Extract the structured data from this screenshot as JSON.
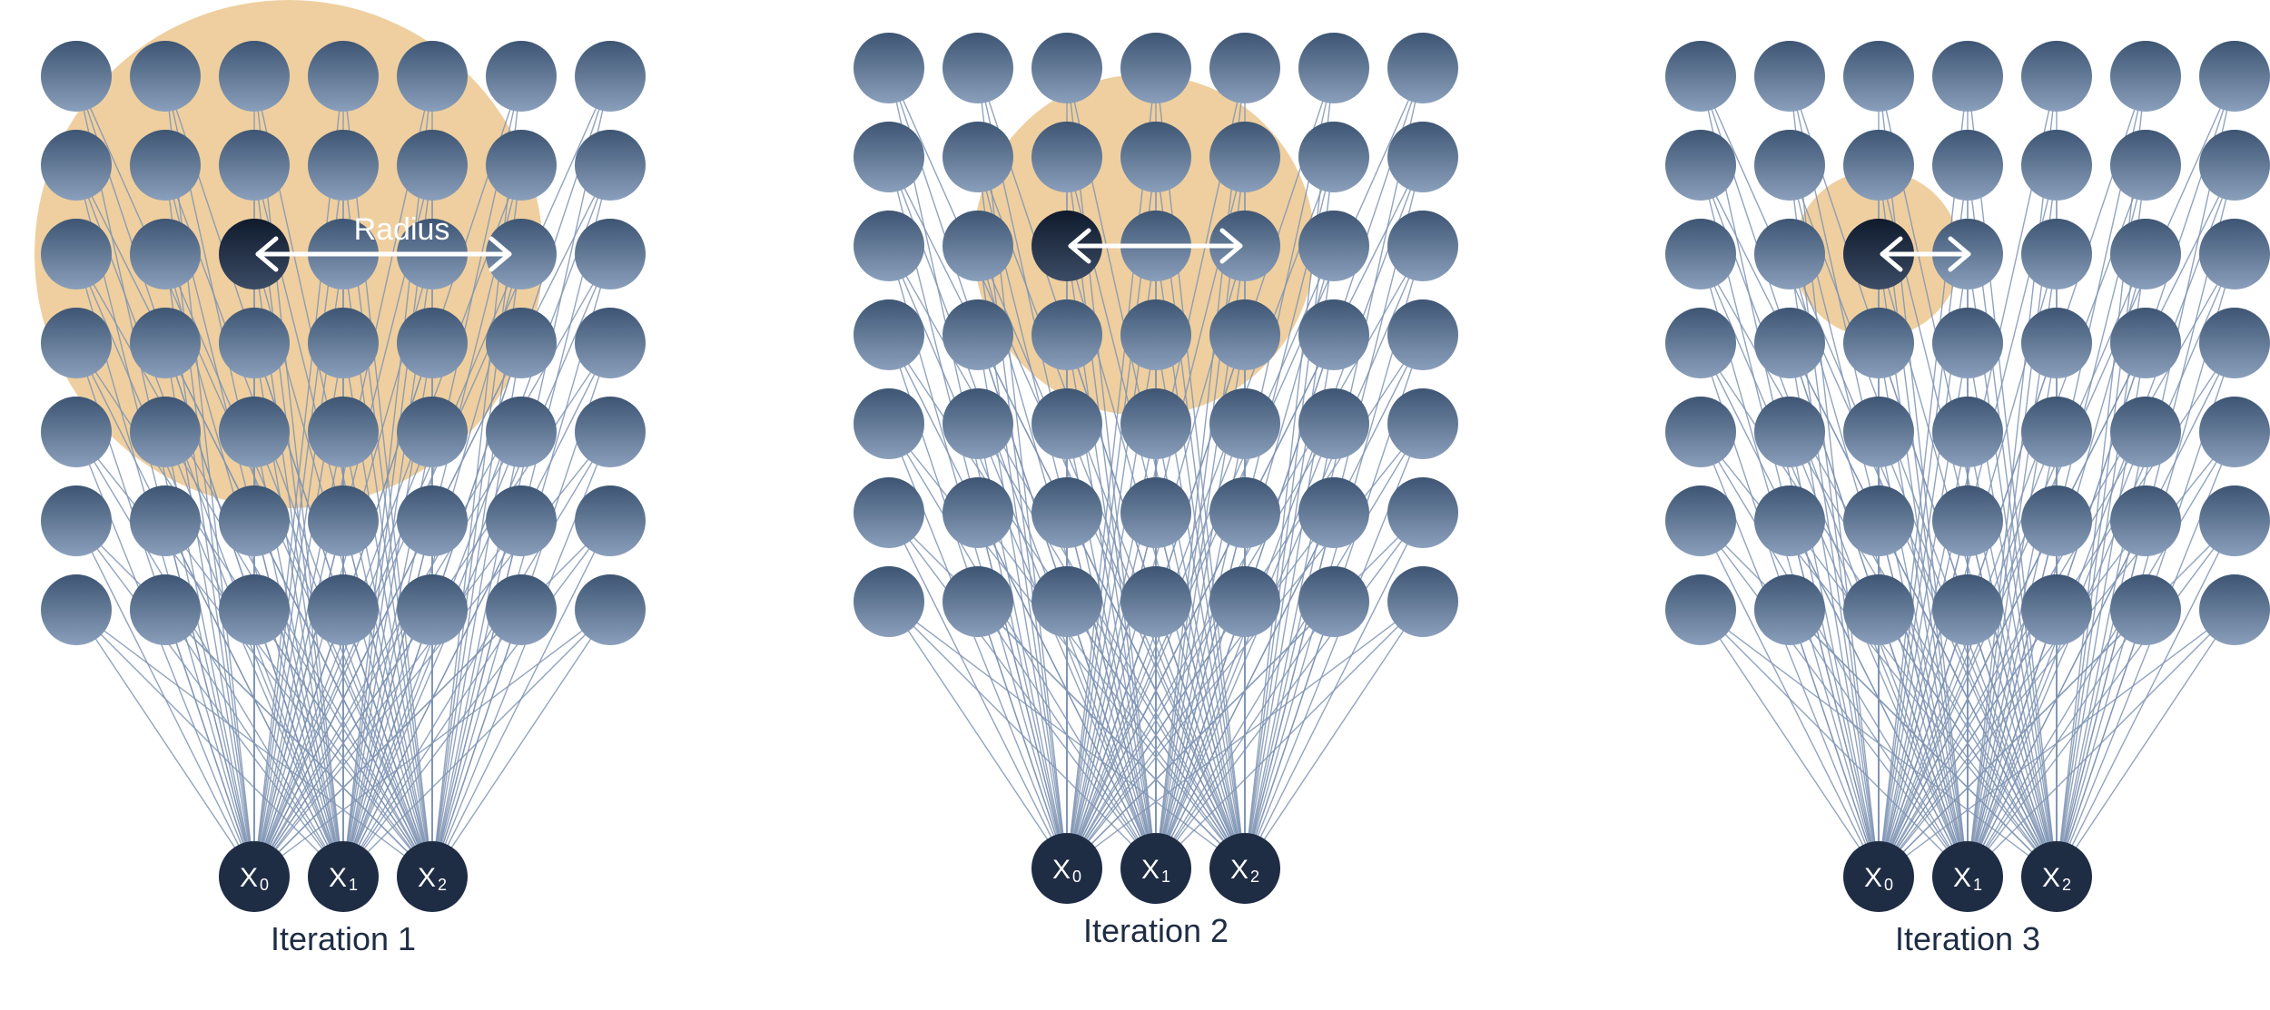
{
  "diagram": {
    "grid": {
      "rows": 7,
      "cols": 7
    },
    "panels": [
      {
        "caption": "Iteration 1",
        "inputs": [
          {
            "base": "X",
            "sub": "0"
          },
          {
            "base": "X",
            "sub": "1"
          },
          {
            "base": "X",
            "sub": "2"
          }
        ],
        "winner": {
          "row": 2,
          "col": 2
        },
        "radius_label": "Radius"
      },
      {
        "caption": "Iteration 2",
        "inputs": [
          {
            "base": "X",
            "sub": "0"
          },
          {
            "base": "X",
            "sub": "1"
          },
          {
            "base": "X",
            "sub": "2"
          }
        ],
        "winner": {
          "row": 2,
          "col": 2
        },
        "radius_label": ""
      },
      {
        "caption": "Iteration 3",
        "inputs": [
          {
            "base": "X",
            "sub": "0"
          },
          {
            "base": "X",
            "sub": "1"
          },
          {
            "base": "X",
            "sub": "2"
          }
        ],
        "winner": {
          "row": 2,
          "col": 2
        },
        "radius_label": ""
      }
    ],
    "colors": {
      "neighborhood": "#efcf9f",
      "node_top": "#3d5573",
      "node_bottom": "#8a9fbb",
      "winner_top": "#0f1a2c",
      "winner_bottom": "#3c4c66",
      "input_node": "#1e2c44",
      "edge": "#7f94b3",
      "arrow": "#ffffff",
      "caption": "#1f2d44"
    }
  }
}
